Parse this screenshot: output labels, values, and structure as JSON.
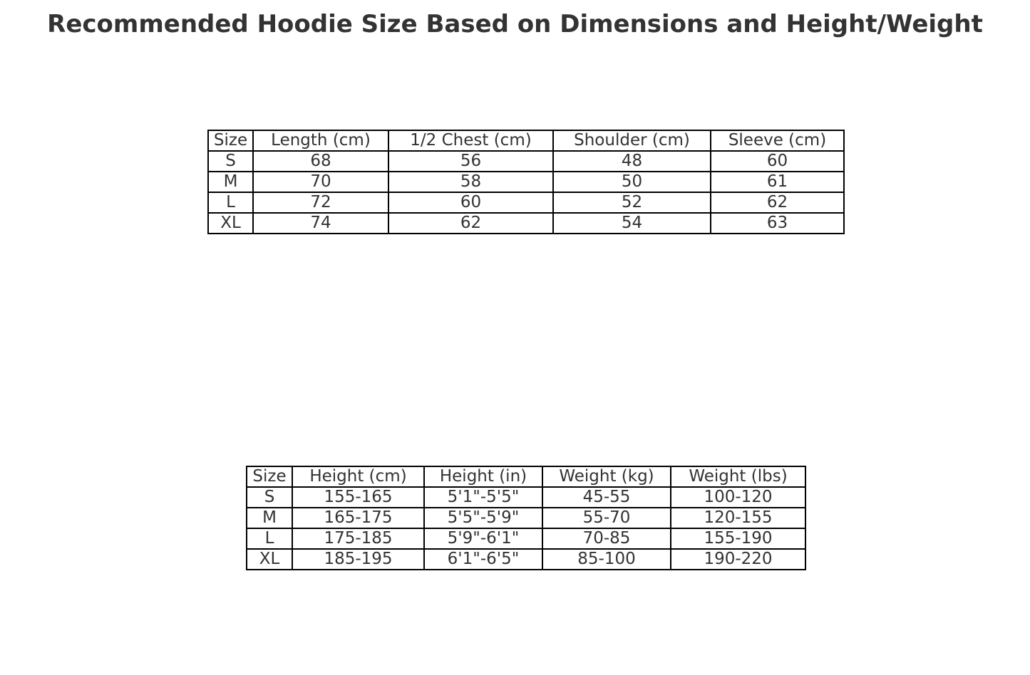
{
  "chart_data": [
    {
      "type": "table",
      "title": "Recommended Hoodie Size Based on Dimensions and Height/Weight",
      "columns": [
        "Size",
        "Length (cm)",
        "1/2 Chest (cm)",
        "Shoulder (cm)",
        "Sleeve (cm)"
      ],
      "rows": [
        [
          "S",
          "68",
          "56",
          "48",
          "60"
        ],
        [
          "M",
          "70",
          "58",
          "50",
          "61"
        ],
        [
          "L",
          "72",
          "60",
          "52",
          "62"
        ],
        [
          "XL",
          "74",
          "62",
          "54",
          "63"
        ]
      ]
    },
    {
      "type": "table",
      "columns": [
        "Size",
        "Height (cm)",
        "Height (in)",
        "Weight (kg)",
        "Weight (lbs)"
      ],
      "rows": [
        [
          "S",
          "155-165",
          "5'1\"-5'5\"",
          "45-55",
          "100-120"
        ],
        [
          "M",
          "165-175",
          "5'5\"-5'9\"",
          "55-70",
          "120-155"
        ],
        [
          "L",
          "175-185",
          "5'9\"-6'1\"",
          "70-85",
          "155-190"
        ],
        [
          "XL",
          "185-195",
          "6'1\"-6'5\"",
          "85-100",
          "190-220"
        ]
      ]
    }
  ]
}
